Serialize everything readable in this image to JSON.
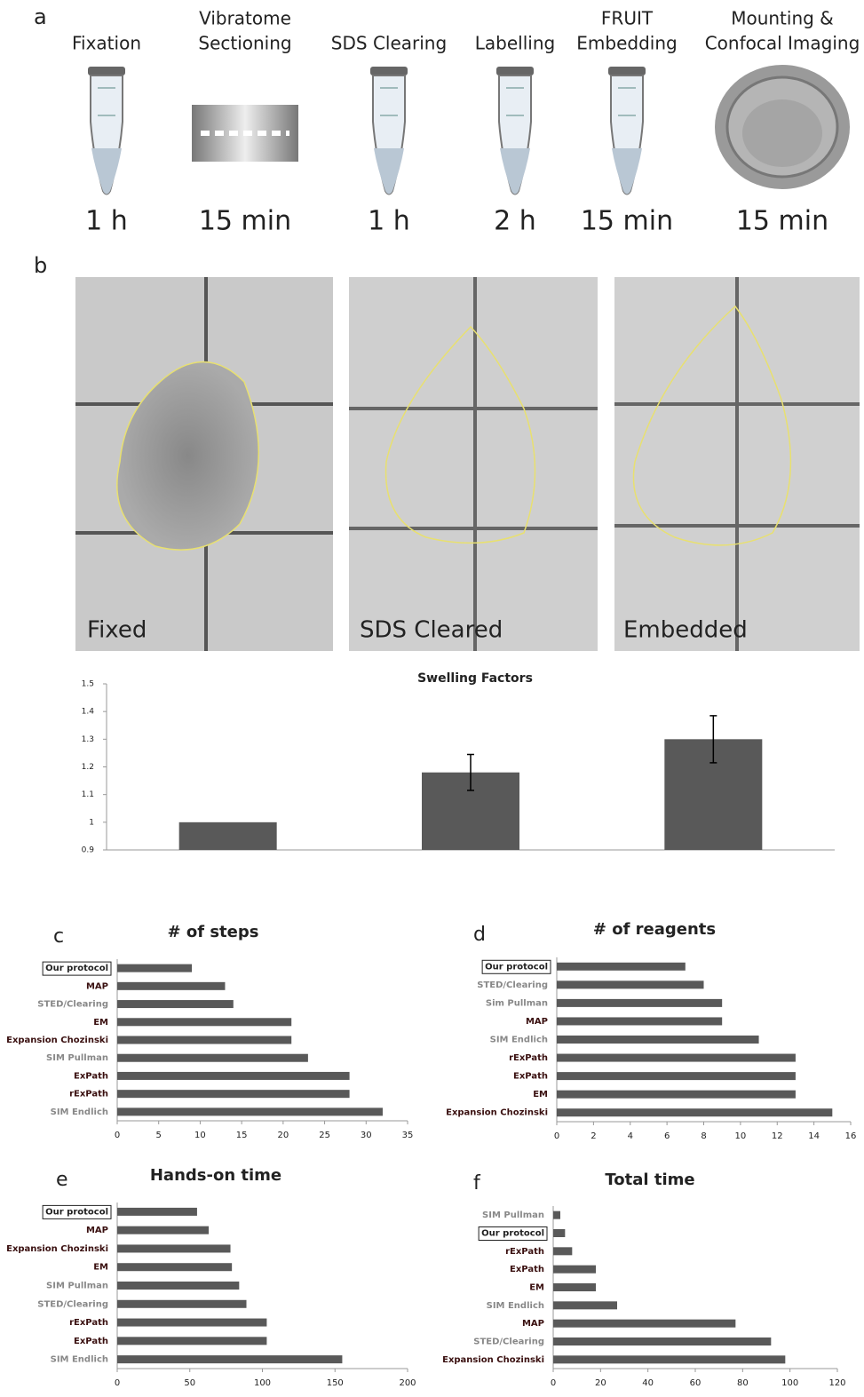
{
  "panel_a": {
    "label": "a",
    "steps": [
      {
        "name": [
          "Fixation"
        ],
        "time": "1 h"
      },
      {
        "name": [
          "Vibratome",
          "Sectioning"
        ],
        "time": "15 min"
      },
      {
        "name": [
          "SDS Clearing"
        ],
        "time": "1 h"
      },
      {
        "name": [
          "Labelling"
        ],
        "time": "2 h"
      },
      {
        "name": [
          "FRUIT",
          "Embedding"
        ],
        "time": "15 min"
      },
      {
        "name": [
          "Mounting &",
          "Confocal Imaging"
        ],
        "time": "15 min"
      }
    ]
  },
  "panel_b": {
    "label": "b",
    "images": [
      "Fixed",
      "SDS Cleared",
      "Embedded"
    ]
  },
  "chart_data": [
    {
      "type": "bar",
      "title": "Swelling Factors",
      "categories": [
        null,
        null,
        null
      ],
      "values": [
        1,
        1.18,
        1.3
      ],
      "errors": [
        null,
        0.065,
        0.085
      ],
      "ylim": [
        0.9,
        1.5
      ],
      "yticks": [
        0.9,
        1,
        1.1,
        1.2,
        1.3,
        1.4,
        1.5
      ],
      "color": "#595959"
    },
    {
      "type": "hbar",
      "panel_label": "c",
      "title": "# of steps",
      "categories": [
        "Our protocol",
        "MAP",
        "STED/Clearing",
        "EM",
        "Expansion Chozinski",
        "SIM Pullman",
        "ExPath",
        "rExPath",
        "SIM Endlich"
      ],
      "category_colors": [
        "#222",
        "#3a1010",
        "#888",
        "#3a1010",
        "#3a1010",
        "#888",
        "#3a1010",
        "#3a1010",
        "#888"
      ],
      "values": [
        9,
        13,
        14,
        21,
        21,
        23,
        28,
        28,
        32
      ],
      "xlim": [
        0,
        35
      ],
      "xticks": [
        0,
        5,
        10,
        15,
        20,
        25,
        30,
        35
      ],
      "color": "#595959",
      "highlight_index": 0
    },
    {
      "type": "hbar",
      "panel_label": "d",
      "title": "# of reagents",
      "categories": [
        "Our protocol",
        "STED/Clearing",
        "Sim Pullman",
        "MAP",
        "SIM Endlich",
        "rExPath",
        "ExPath",
        "EM",
        "Expansion Chozinski"
      ],
      "category_colors": [
        "#222",
        "#888",
        "#888",
        "#3a1010",
        "#888",
        "#3a1010",
        "#3a1010",
        "#3a1010",
        "#3a1010"
      ],
      "values": [
        7,
        8,
        9,
        9,
        11,
        13,
        13,
        13,
        15
      ],
      "xlim": [
        0,
        16
      ],
      "xticks": [
        0,
        2,
        4,
        6,
        8,
        10,
        12,
        14,
        16
      ],
      "color": "#595959",
      "highlight_index": 0
    },
    {
      "type": "hbar",
      "panel_label": "e",
      "title": "Hands-on time",
      "categories": [
        "Our protocol",
        "MAP",
        "Expansion Chozinski",
        "EM",
        "SIM Pullman",
        "STED/Clearing",
        "rExPath",
        "ExPath",
        "SIM Endlich"
      ],
      "category_colors": [
        "#222",
        "#3a1010",
        "#3a1010",
        "#3a1010",
        "#888",
        "#888",
        "#3a1010",
        "#3a1010",
        "#888"
      ],
      "values": [
        55,
        63,
        78,
        79,
        84,
        89,
        103,
        103,
        155
      ],
      "xlim": [
        0,
        200
      ],
      "xticks": [
        0,
        50,
        100,
        150,
        200
      ],
      "color": "#595959",
      "highlight_index": 0
    },
    {
      "type": "hbar",
      "panel_label": "f",
      "title": "Total time",
      "categories": [
        "SIM Pullman",
        "Our protocol",
        "rExPath",
        "ExPath",
        "EM",
        "SIM Endlich",
        "MAP",
        "STED/Clearing",
        "Expansion Chozinski"
      ],
      "category_colors": [
        "#888",
        "#222",
        "#3a1010",
        "#3a1010",
        "#3a1010",
        "#888",
        "#3a1010",
        "#888",
        "#3a1010"
      ],
      "values": [
        3,
        5,
        8,
        18,
        18,
        27,
        77,
        92,
        98
      ],
      "xlim": [
        0,
        120
      ],
      "xticks": [
        0,
        20,
        40,
        60,
        80,
        100,
        120
      ],
      "color": "#595959",
      "highlight_index": 1
    }
  ]
}
